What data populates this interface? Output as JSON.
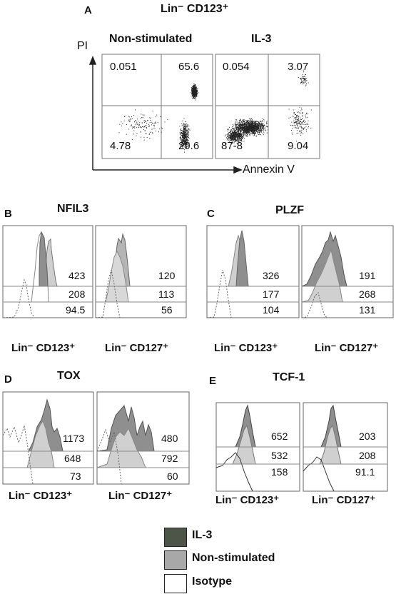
{
  "panel_a": {
    "letter": "A",
    "title": "Lin⁻ CD123⁺",
    "y_axis": "PI",
    "x_axis": "Annexin V",
    "conditions": [
      "Non-stimulated",
      "IL-3"
    ],
    "quadrants": [
      {
        "condition": "Non-stimulated",
        "upper_left": "0.051",
        "upper_right": "65.6",
        "lower_left": "4.78",
        "lower_right": "29.6"
      },
      {
        "condition": "IL-3",
        "upper_left": "0.054",
        "upper_right": "3.07",
        "lower_left": "87-8",
        "lower_right": "9.04"
      }
    ]
  },
  "histogram_panels": [
    {
      "letter": "B",
      "title": "NFIL3",
      "populations": [
        {
          "label": "Lin⁻ CD123⁺",
          "values": [
            "423",
            "208",
            "94.5"
          ]
        },
        {
          "label": "Lin⁻ CD127⁺",
          "values": [
            "120",
            "113",
            "56"
          ]
        }
      ]
    },
    {
      "letter": "C",
      "title": "PLZF",
      "populations": [
        {
          "label": "Lin⁻ CD123⁺",
          "values": [
            "326",
            "177",
            "104"
          ]
        },
        {
          "label": "Lin⁻ CD127⁺",
          "values": [
            "191",
            "268",
            "131"
          ]
        }
      ]
    },
    {
      "letter": "D",
      "title": "TOX",
      "populations": [
        {
          "label": "Lin⁻ CD123⁺",
          "values": [
            "1173",
            "648",
            "73"
          ]
        },
        {
          "label": "Lin⁻ CD127⁺",
          "values": [
            "480",
            "792",
            "60"
          ]
        }
      ]
    },
    {
      "letter": "E",
      "title": "TCF-1",
      "populations": [
        {
          "label": "Lin⁻ CD123⁺",
          "values": [
            "652",
            "532",
            "158"
          ]
        },
        {
          "label": "Lin⁻ CD127⁺",
          "values": [
            "203",
            "208",
            "91.1"
          ]
        }
      ]
    }
  ],
  "legend": [
    {
      "label": "IL-3",
      "color": "#4d5549"
    },
    {
      "label": "Non-stimulated",
      "color": "#a8a8a8"
    },
    {
      "label": "Isotype",
      "color": "#ffffff"
    }
  ],
  "colors": {
    "il3": "#6f6f6f",
    "non_stimulated": "#c9c9c9",
    "isotype": "#ffffff",
    "frame": "#555555"
  }
}
